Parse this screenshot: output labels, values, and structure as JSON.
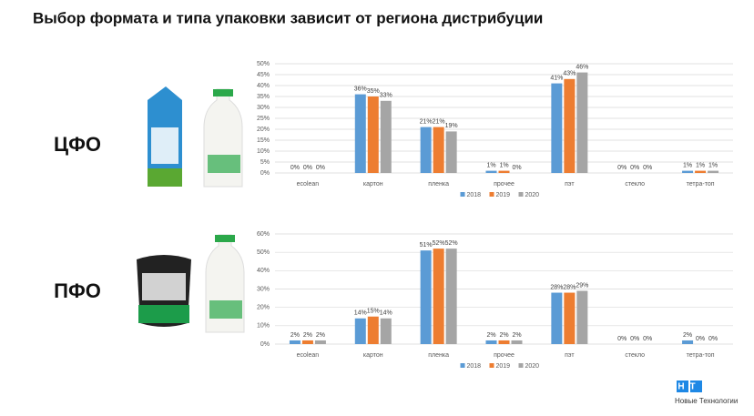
{
  "title": "Выбор формата и типа упаковки зависит от региона дистрибуции",
  "logo": {
    "mark": "НТ",
    "name": "Новые Технологии"
  },
  "chart_data": [
    {
      "type": "bar",
      "region": "ЦФО",
      "categories": [
        "ecolean",
        "картон",
        "пленка",
        "прочее",
        "пэт",
        "стекло",
        "тетра-топ"
      ],
      "series": [
        {
          "name": "2018",
          "color": "#5b9bd5",
          "values": [
            0,
            36,
            21,
            1,
            41,
            0,
            1
          ],
          "value_labels": [
            "0%",
            "36%",
            "21%",
            "1%",
            "41%",
            "0%",
            "1%"
          ]
        },
        {
          "name": "2019",
          "color": "#ed7d31",
          "values": [
            0,
            35,
            21,
            1,
            43,
            0,
            1
          ],
          "value_labels": [
            "0%",
            "35%",
            "21%",
            "1%",
            "43%",
            "0%",
            "1%"
          ]
        },
        {
          "name": "2020",
          "color": "#a5a5a5",
          "values": [
            0,
            33,
            19,
            0,
            46,
            0,
            1
          ],
          "value_labels": [
            "0%",
            "33%",
            "19%",
            "0%",
            "46%",
            "0%",
            "1%"
          ]
        }
      ],
      "ylim": [
        0,
        50
      ],
      "yticks": [
        {
          "value": 0,
          "label": "0%"
        },
        {
          "value": 5,
          "label": "5%"
        },
        {
          "value": 10,
          "label": "10%"
        },
        {
          "value": 15,
          "label": "15%"
        },
        {
          "value": 20,
          "label": "20%"
        },
        {
          "value": 25,
          "label": "25%"
        },
        {
          "value": 30,
          "label": "30%"
        },
        {
          "value": 35,
          "label": "35%"
        },
        {
          "value": 40,
          "label": "40%"
        },
        {
          "value": 45,
          "label": "45%"
        },
        {
          "value": 50,
          "label": "50%"
        }
      ],
      "grid": true,
      "legend": "bottom"
    },
    {
      "type": "bar",
      "region": "ПФО",
      "categories": [
        "ecolean",
        "картон",
        "пленка",
        "прочее",
        "пэт",
        "стекло",
        "тетра-топ"
      ],
      "series": [
        {
          "name": "2018",
          "color": "#5b9bd5",
          "values": [
            2,
            14,
            51,
            2,
            28,
            0,
            2
          ],
          "value_labels": [
            "2%",
            "14%",
            "51%",
            "2%",
            "28%",
            "0%",
            "2%"
          ]
        },
        {
          "name": "2019",
          "color": "#ed7d31",
          "values": [
            2,
            15,
            52,
            2,
            28,
            0,
            0
          ],
          "value_labels": [
            "2%",
            "15%",
            "52%",
            "2%",
            "28%",
            "0%",
            "0%"
          ]
        },
        {
          "name": "2020",
          "color": "#a5a5a5",
          "values": [
            2,
            14,
            52,
            2,
            29,
            0,
            0
          ],
          "value_labels": [
            "2%",
            "14%",
            "52%",
            "2%",
            "29%",
            "0%",
            "0%"
          ]
        }
      ],
      "ylim": [
        0,
        60
      ],
      "yticks": [
        {
          "value": 0,
          "label": "0%"
        },
        {
          "value": 10,
          "label": "10%"
        },
        {
          "value": 20,
          "label": "20%"
        },
        {
          "value": 30,
          "label": "30%"
        },
        {
          "value": 40,
          "label": "40%"
        },
        {
          "value": 50,
          "label": "50%"
        },
        {
          "value": 60,
          "label": "60%"
        }
      ],
      "grid": true,
      "legend": "bottom"
    }
  ]
}
